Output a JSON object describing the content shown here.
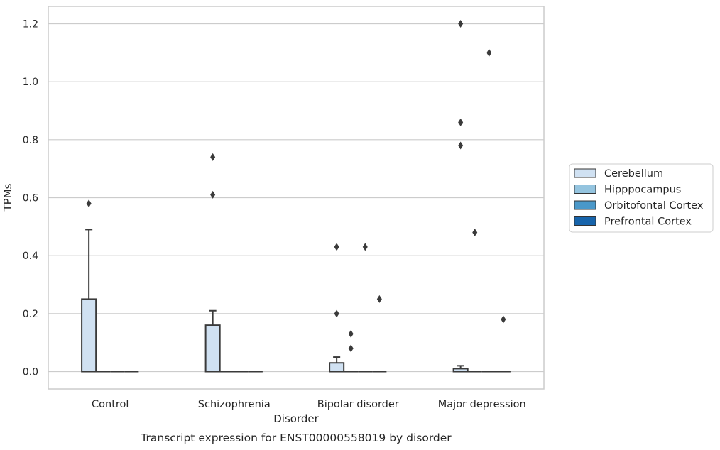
{
  "chart_data": {
    "type": "box",
    "title": "",
    "caption": "Transcript expression for ENST00000558019 by disorder",
    "xlabel": "Disorder",
    "ylabel": "TPMs",
    "categories": [
      "Control",
      "Schizophrenia",
      "Bipolar disorder",
      "Major depression"
    ],
    "ylim": [
      -0.06,
      1.26
    ],
    "yticks": [
      0.0,
      0.2,
      0.4,
      0.6,
      0.8,
      1.0,
      1.2
    ],
    "ytick_labels": [
      "0.0",
      "0.2",
      "0.4",
      "0.6",
      "0.8",
      "1.0",
      "1.2"
    ],
    "grid": true,
    "legend_placement": "outside-right",
    "series": [
      {
        "name": "Cerebellum",
        "color": "#d0e1f2",
        "boxes": [
          {
            "category": "Control",
            "q1": 0.0,
            "median": 0.0,
            "q3": 0.25,
            "whisker_low": 0.0,
            "whisker_high": 0.49,
            "outliers": [
              0.58
            ]
          },
          {
            "category": "Schizophrenia",
            "q1": 0.0,
            "median": 0.0,
            "q3": 0.16,
            "whisker_low": 0.0,
            "whisker_high": 0.21,
            "outliers": [
              0.61,
              0.74
            ]
          },
          {
            "category": "Bipolar disorder",
            "q1": 0.0,
            "median": 0.0,
            "q3": 0.03,
            "whisker_low": 0.0,
            "whisker_high": 0.05,
            "outliers": [
              0.2,
              0.43
            ]
          },
          {
            "category": "Major depression",
            "q1": 0.0,
            "median": 0.0,
            "q3": 0.01,
            "whisker_low": 0.0,
            "whisker_high": 0.02,
            "outliers": [
              0.78,
              0.86,
              1.2
            ]
          }
        ]
      },
      {
        "name": "Hipppocampus",
        "color": "#94c4df",
        "boxes": [
          {
            "category": "Control",
            "q1": 0.0,
            "median": 0.0,
            "q3": 0.0,
            "whisker_low": 0.0,
            "whisker_high": 0.0,
            "outliers": []
          },
          {
            "category": "Schizophrenia",
            "q1": 0.0,
            "median": 0.0,
            "q3": 0.0,
            "whisker_low": 0.0,
            "whisker_high": 0.0,
            "outliers": []
          },
          {
            "category": "Bipolar disorder",
            "q1": 0.0,
            "median": 0.0,
            "q3": 0.0,
            "whisker_low": 0.0,
            "whisker_high": 0.0,
            "outliers": [
              0.08,
              0.13
            ]
          },
          {
            "category": "Major depression",
            "q1": 0.0,
            "median": 0.0,
            "q3": 0.0,
            "whisker_low": 0.0,
            "whisker_high": 0.0,
            "outliers": [
              0.48
            ]
          }
        ]
      },
      {
        "name": "Orbitofontal Cortex",
        "color": "#4a98c9",
        "boxes": [
          {
            "category": "Control",
            "q1": 0.0,
            "median": 0.0,
            "q3": 0.0,
            "whisker_low": 0.0,
            "whisker_high": 0.0,
            "outliers": []
          },
          {
            "category": "Schizophrenia",
            "q1": 0.0,
            "median": 0.0,
            "q3": 0.0,
            "whisker_low": 0.0,
            "whisker_high": 0.0,
            "outliers": []
          },
          {
            "category": "Bipolar disorder",
            "q1": 0.0,
            "median": 0.0,
            "q3": 0.0,
            "whisker_low": 0.0,
            "whisker_high": 0.0,
            "outliers": [
              0.43
            ]
          },
          {
            "category": "Major depression",
            "q1": 0.0,
            "median": 0.0,
            "q3": 0.0,
            "whisker_low": 0.0,
            "whisker_high": 0.0,
            "outliers": [
              1.1
            ]
          }
        ]
      },
      {
        "name": "Prefrontal Cortex",
        "color": "#1764ab",
        "boxes": [
          {
            "category": "Control",
            "q1": 0.0,
            "median": 0.0,
            "q3": 0.0,
            "whisker_low": 0.0,
            "whisker_high": 0.0,
            "outliers": []
          },
          {
            "category": "Schizophrenia",
            "q1": 0.0,
            "median": 0.0,
            "q3": 0.0,
            "whisker_low": 0.0,
            "whisker_high": 0.0,
            "outliers": []
          },
          {
            "category": "Bipolar disorder",
            "q1": 0.0,
            "median": 0.0,
            "q3": 0.0,
            "whisker_low": 0.0,
            "whisker_high": 0.0,
            "outliers": [
              0.25
            ]
          },
          {
            "category": "Major depression",
            "q1": 0.0,
            "median": 0.0,
            "q3": 0.0,
            "whisker_low": 0.0,
            "whisker_high": 0.0,
            "outliers": [
              0.18
            ]
          }
        ]
      }
    ]
  }
}
